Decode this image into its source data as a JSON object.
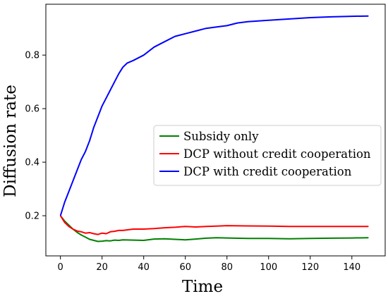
{
  "chart_data": {
    "type": "line",
    "title": "",
    "xlabel": "Time",
    "ylabel": "Diffusion rate",
    "xlim": [
      -7,
      156
    ],
    "ylim": [
      0.05,
      0.99
    ],
    "xticks": [
      0,
      20,
      40,
      60,
      80,
      100,
      120,
      140
    ],
    "yticks": [
      0.2,
      0.4,
      0.6,
      0.8
    ],
    "xtick_labels": [
      "0",
      "20",
      "40",
      "60",
      "80",
      "100",
      "120",
      "140"
    ],
    "ytick_labels": [
      "0.2",
      "0.4",
      "0.6",
      "0.8"
    ],
    "grid": false,
    "legend_position": "center-right",
    "series": [
      {
        "name": "Subsidy only",
        "color": "#008000",
        "x": [
          0,
          2,
          4,
          6,
          8,
          10,
          12,
          14,
          16,
          18,
          20,
          22,
          24,
          26,
          28,
          30,
          35,
          40,
          45,
          50,
          55,
          60,
          65,
          70,
          75,
          80,
          90,
          100,
          110,
          120,
          130,
          140,
          148
        ],
        "y": [
          0.2,
          0.18,
          0.165,
          0.15,
          0.138,
          0.128,
          0.12,
          0.112,
          0.108,
          0.104,
          0.105,
          0.107,
          0.106,
          0.109,
          0.108,
          0.11,
          0.109,
          0.108,
          0.113,
          0.114,
          0.112,
          0.11,
          0.113,
          0.116,
          0.118,
          0.117,
          0.115,
          0.115,
          0.114,
          0.115,
          0.116,
          0.117,
          0.118
        ]
      },
      {
        "name": "DCP without credit cooperation",
        "color": "#ff0000",
        "x": [
          0,
          2,
          4,
          6,
          8,
          10,
          12,
          14,
          16,
          18,
          20,
          22,
          24,
          26,
          28,
          30,
          35,
          40,
          45,
          50,
          55,
          60,
          65,
          70,
          75,
          80,
          90,
          100,
          110,
          120,
          130,
          140,
          148
        ],
        "y": [
          0.2,
          0.175,
          0.16,
          0.15,
          0.143,
          0.14,
          0.135,
          0.137,
          0.133,
          0.13,
          0.135,
          0.133,
          0.14,
          0.142,
          0.145,
          0.145,
          0.15,
          0.15,
          0.152,
          0.155,
          0.157,
          0.16,
          0.158,
          0.16,
          0.161,
          0.163,
          0.162,
          0.161,
          0.16,
          0.16,
          0.16,
          0.16,
          0.16
        ]
      },
      {
        "name": "DCP with credit cooperation",
        "color": "#0000ff",
        "x": [
          0,
          2,
          4,
          6,
          8,
          10,
          12,
          14,
          16,
          18,
          20,
          22,
          24,
          26,
          28,
          30,
          32,
          35,
          40,
          45,
          50,
          55,
          60,
          65,
          70,
          75,
          80,
          85,
          90,
          100,
          110,
          120,
          130,
          140,
          148
        ],
        "y": [
          0.2,
          0.25,
          0.29,
          0.33,
          0.37,
          0.41,
          0.44,
          0.48,
          0.53,
          0.57,
          0.61,
          0.64,
          0.67,
          0.7,
          0.73,
          0.755,
          0.77,
          0.78,
          0.8,
          0.83,
          0.85,
          0.87,
          0.88,
          0.89,
          0.9,
          0.905,
          0.91,
          0.92,
          0.925,
          0.93,
          0.935,
          0.94,
          0.943,
          0.945,
          0.946
        ]
      }
    ]
  }
}
